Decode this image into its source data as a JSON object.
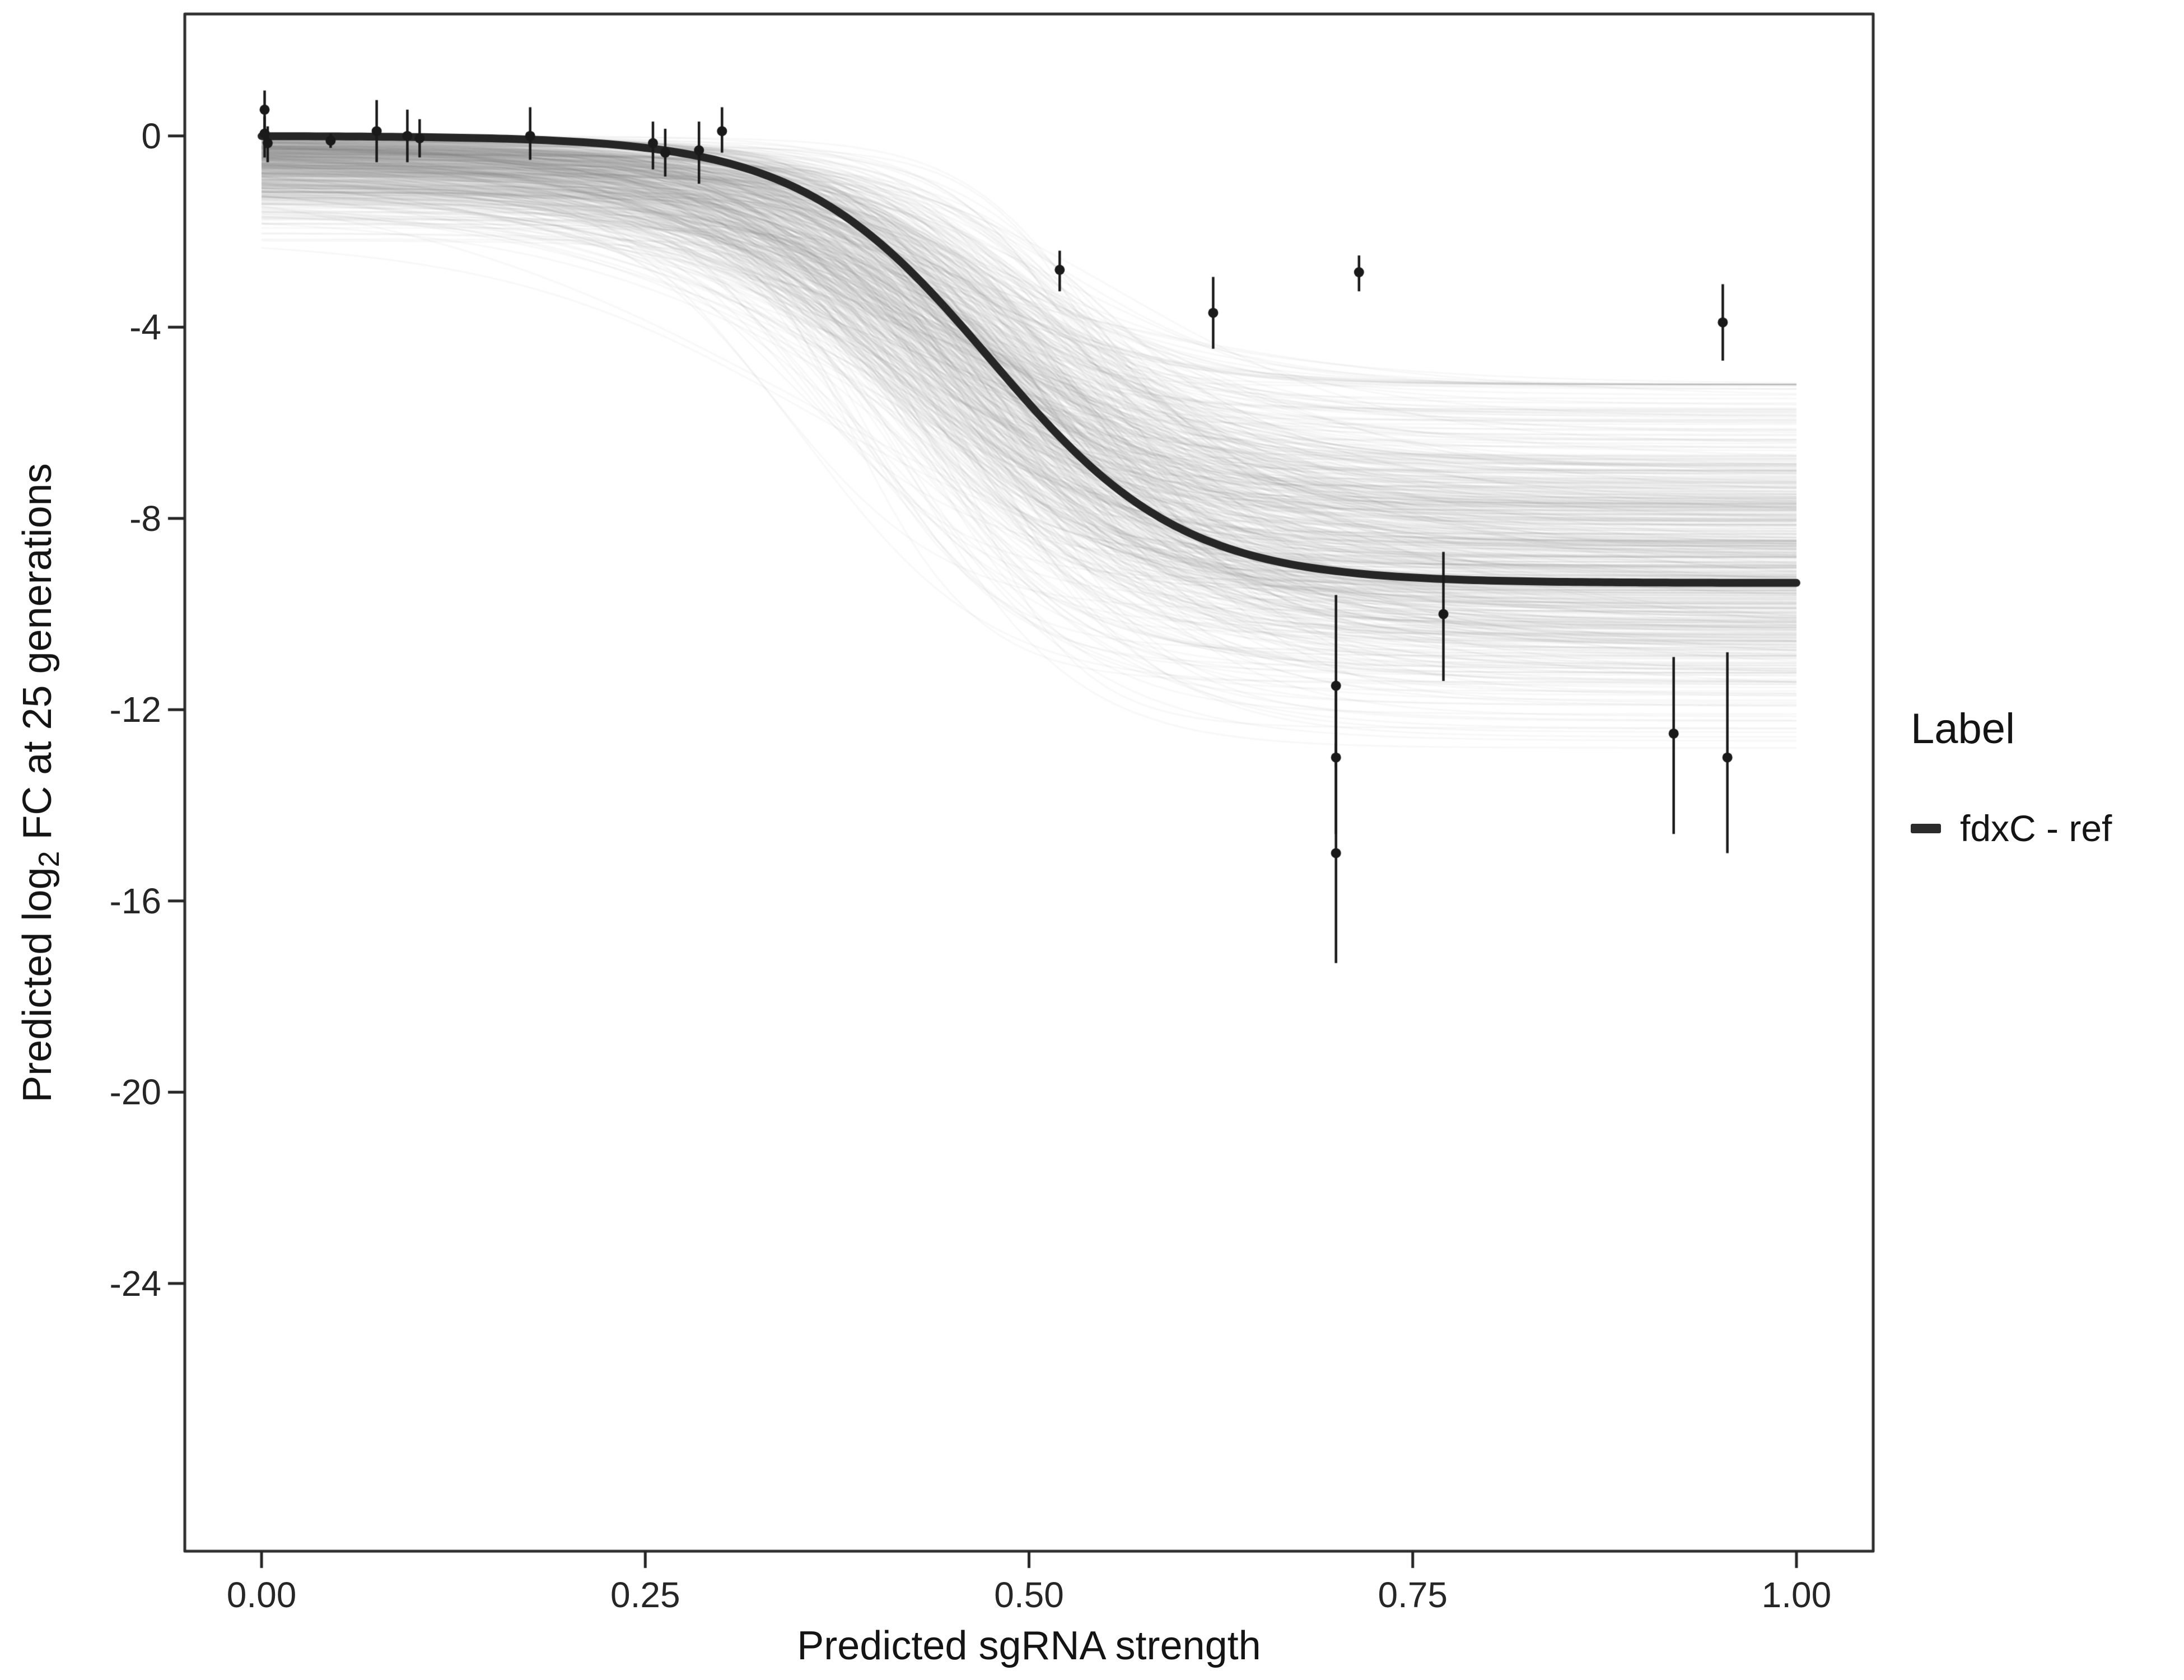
{
  "chart_data": {
    "type": "line",
    "title": "",
    "xlabel": "Predicted sgRNA strength",
    "ylabel_parts": {
      "pre": "Predicted  log",
      "sub": "2",
      "post": " FC at 25 generations"
    },
    "x_range": [
      -0.05,
      1.05
    ],
    "y_range": [
      -29.6,
      2.55
    ],
    "x_ticks": {
      "values": [
        0,
        0.25,
        0.5,
        0.75,
        1
      ],
      "labels": [
        "0.00",
        "0.25",
        "0.50",
        "0.75",
        "1.00"
      ]
    },
    "y_ticks": {
      "values": [
        0,
        -4,
        -8,
        -12,
        -16,
        -20,
        -24
      ],
      "labels": [
        "0",
        "-4",
        "-8",
        "-12",
        "-16",
        "-20",
        "-24"
      ]
    },
    "grid": false,
    "main_curve": {
      "model": "logistic",
      "upper_asymptote": 0,
      "lower_asymptote": -9.35,
      "midpoint": 0.475,
      "slope": 16,
      "color": "#262626",
      "width": 14
    },
    "posterior_lines": {
      "count": 600,
      "seed": 42,
      "color": "#7d7d7d",
      "alpha": 0.055,
      "width": 3,
      "lower_mean": -8.8,
      "lower_sd": 1.7,
      "lower_clamp": [
        -12.8,
        -5.2
      ],
      "mid_mean": 0.46,
      "mid_sd": 0.045,
      "mid_clamp": [
        0.33,
        0.58
      ],
      "slope_mean": 15,
      "slope_sd": 4.5,
      "slope_clamp": [
        7,
        28
      ],
      "upper_scale": 0.75,
      "upper_clamp": [
        -2.8,
        0
      ]
    },
    "points_style": {
      "color": "#1a1a1a",
      "radius": 9,
      "bar_width": 4.5
    },
    "points": [
      {
        "x": 0.002,
        "y": 0.55,
        "ymin": -0.1,
        "ymax": 0.95
      },
      {
        "x": 0.002,
        "y": 0.05,
        "ymin": -0.45,
        "ymax": 0.4
      },
      {
        "x": 0.004,
        "y": -0.15,
        "ymin": -0.55,
        "ymax": 0.2
      },
      {
        "x": 0.045,
        "y": -0.1,
        "ymin": -0.25,
        "ymax": 0.05
      },
      {
        "x": 0.075,
        "y": 0.1,
        "ymin": -0.55,
        "ymax": 0.75
      },
      {
        "x": 0.095,
        "y": 0.0,
        "ymin": -0.55,
        "ymax": 0.55
      },
      {
        "x": 0.103,
        "y": -0.05,
        "ymin": -0.45,
        "ymax": 0.35
      },
      {
        "x": 0.175,
        "y": 0.0,
        "ymin": -0.5,
        "ymax": 0.6
      },
      {
        "x": 0.255,
        "y": -0.15,
        "ymin": -0.7,
        "ymax": 0.3
      },
      {
        "x": 0.263,
        "y": -0.35,
        "ymin": -0.85,
        "ymax": 0.15
      },
      {
        "x": 0.285,
        "y": -0.3,
        "ymin": -1.0,
        "ymax": 0.3
      },
      {
        "x": 0.3,
        "y": 0.1,
        "ymin": -0.35,
        "ymax": 0.6
      },
      {
        "x": 0.52,
        "y": -2.8,
        "ymin": -3.25,
        "ymax": -2.4
      },
      {
        "x": 0.62,
        "y": -3.7,
        "ymin": -4.45,
        "ymax": -2.95
      },
      {
        "x": 0.715,
        "y": -2.85,
        "ymin": -3.25,
        "ymax": -2.5
      },
      {
        "x": 0.7,
        "y": -11.5,
        "ymin": -13.2,
        "ymax": -9.6
      },
      {
        "x": 0.7,
        "y": -13.0,
        "ymin": -14.6,
        "ymax": -11.5
      },
      {
        "x": 0.7,
        "y": -15.0,
        "ymin": -17.3,
        "ymax": -12.7
      },
      {
        "x": 0.77,
        "y": -10.0,
        "ymin": -11.4,
        "ymax": -8.7
      },
      {
        "x": 0.92,
        "y": -12.5,
        "ymin": -14.6,
        "ymax": -10.9
      },
      {
        "x": 0.952,
        "y": -3.9,
        "ymin": -4.7,
        "ymax": -3.1
      },
      {
        "x": 0.955,
        "y": -13.0,
        "ymin": -15.0,
        "ymax": -10.8
      }
    ],
    "legend": {
      "title": "Label",
      "items": [
        {
          "label": "fdxC - ref",
          "color": "#2b2b2b"
        }
      ]
    },
    "panel": {
      "border_color": "#2e2e2e",
      "background": "#ffffff",
      "tick_color": "#262626"
    }
  }
}
